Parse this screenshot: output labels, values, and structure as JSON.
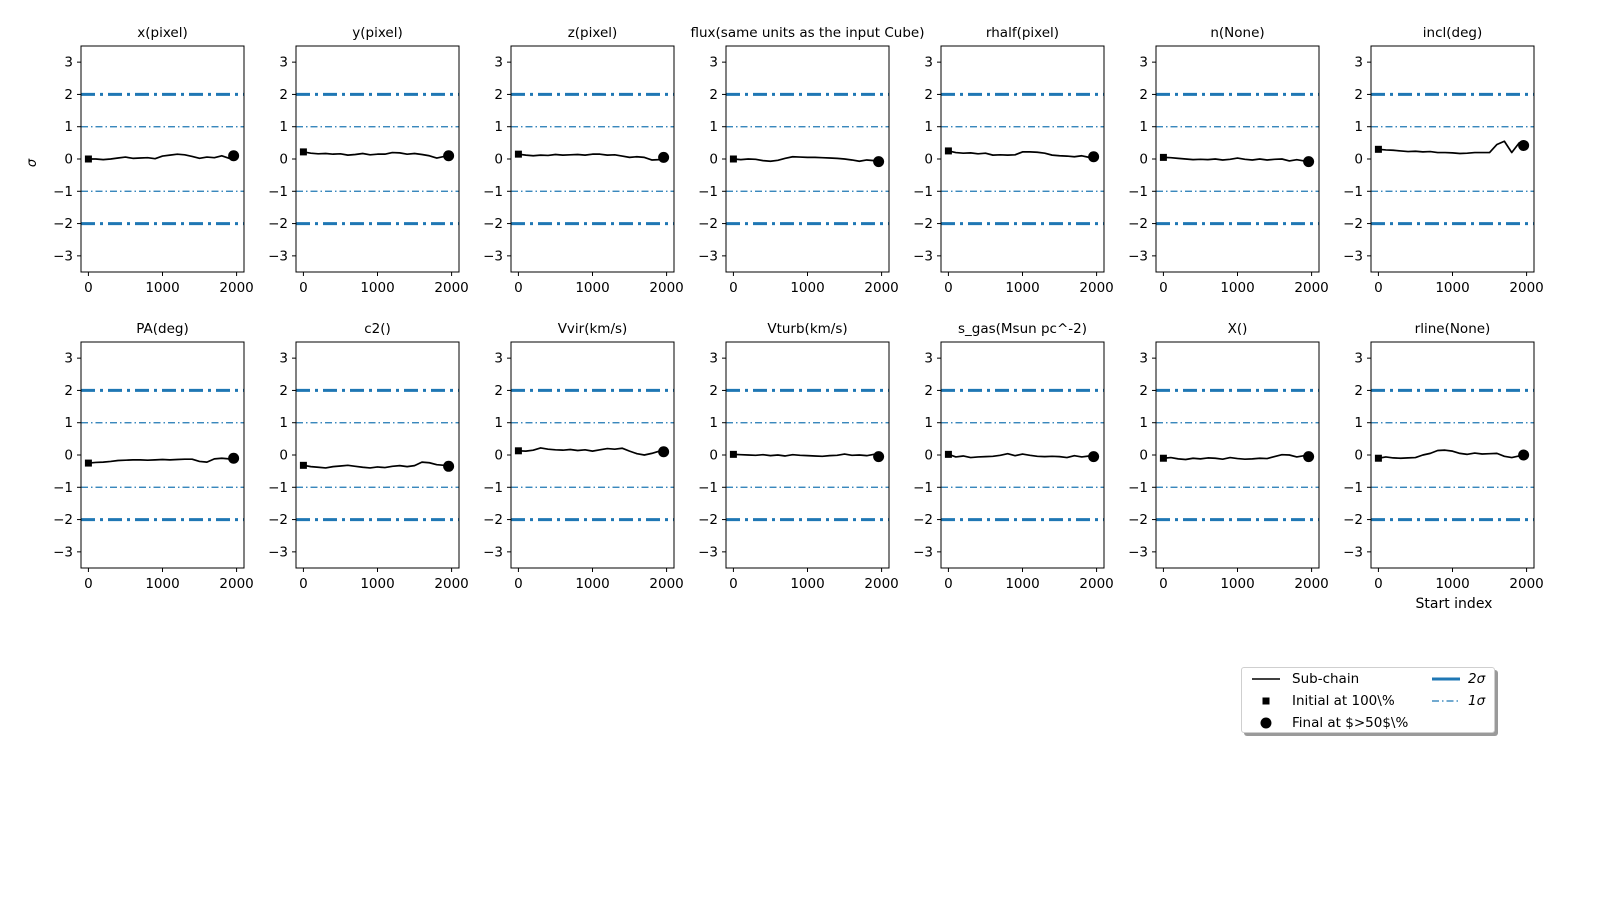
{
  "chart_data": {
    "type": "line",
    "shared_ylabel": "σ",
    "xlabel_last_panel": "Start index",
    "xlim": [
      -100,
      2100
    ],
    "ylim": [
      -3.5,
      3.5
    ],
    "xticks": [
      0,
      1000,
      2000
    ],
    "yticks": [
      -3,
      -2,
      -1,
      0,
      1,
      2,
      3
    ],
    "reference_lines": [
      {
        "name": "2σ",
        "values": [
          2,
          -2
        ],
        "style": "thick dash-dot",
        "color": "#1f77b4"
      },
      {
        "name": "1σ",
        "values": [
          1,
          -1
        ],
        "style": "thin dash-dot",
        "color": "#1f77b4"
      }
    ],
    "x": [
      0,
      100,
      200,
      300,
      400,
      500,
      600,
      700,
      800,
      900,
      1000,
      1100,
      1200,
      1300,
      1400,
      1500,
      1600,
      1700,
      1800,
      1900,
      1960
    ],
    "panels": [
      {
        "title": "x(pixel)",
        "initial": [
          0,
          0.0
        ],
        "final": [
          1960,
          0.1
        ],
        "values": [
          0.0,
          0.0,
          -0.02,
          0.0,
          0.03,
          0.06,
          0.02,
          0.03,
          0.04,
          0.01,
          0.09,
          0.12,
          0.15,
          0.13,
          0.08,
          0.02,
          0.06,
          0.04,
          0.1,
          0.02,
          0.1
        ]
      },
      {
        "title": "y(pixel)",
        "initial": [
          0,
          0.22
        ],
        "final": [
          1960,
          0.1
        ],
        "values": [
          0.22,
          0.18,
          0.16,
          0.17,
          0.15,
          0.16,
          0.12,
          0.14,
          0.17,
          0.13,
          0.15,
          0.15,
          0.2,
          0.19,
          0.15,
          0.17,
          0.14,
          0.1,
          0.03,
          0.08,
          0.1
        ]
      },
      {
        "title": "z(pixel)",
        "initial": [
          0,
          0.15
        ],
        "final": [
          1960,
          0.05
        ],
        "values": [
          0.15,
          0.12,
          0.1,
          0.12,
          0.11,
          0.14,
          0.12,
          0.13,
          0.14,
          0.12,
          0.15,
          0.15,
          0.12,
          0.13,
          0.09,
          0.05,
          0.07,
          0.05,
          -0.03,
          -0.02,
          0.05
        ]
      },
      {
        "title": "flux(same units as the input Cube)",
        "initial": [
          0,
          0.0
        ],
        "final": [
          1960,
          -0.08
        ],
        "values": [
          0.0,
          -0.02,
          0.0,
          -0.01,
          -0.05,
          -0.07,
          -0.04,
          0.02,
          0.07,
          0.06,
          0.05,
          0.05,
          0.04,
          0.03,
          0.02,
          0.0,
          -0.03,
          -0.07,
          -0.03,
          -0.05,
          -0.08
        ]
      },
      {
        "title": "rhalf(pixel)",
        "initial": [
          0,
          0.25
        ],
        "final": [
          1960,
          0.07
        ],
        "values": [
          0.25,
          0.2,
          0.18,
          0.19,
          0.16,
          0.18,
          0.12,
          0.13,
          0.12,
          0.13,
          0.22,
          0.22,
          0.21,
          0.18,
          0.12,
          0.1,
          0.09,
          0.07,
          0.1,
          0.05,
          0.07
        ]
      },
      {
        "title": "n(None)",
        "initial": [
          0,
          0.05
        ],
        "final": [
          1960,
          -0.08
        ],
        "values": [
          0.05,
          0.04,
          0.02,
          0.0,
          -0.02,
          -0.01,
          -0.02,
          0.0,
          -0.03,
          -0.01,
          0.03,
          -0.01,
          -0.03,
          0.0,
          -0.03,
          -0.01,
          0.0,
          -0.06,
          -0.02,
          -0.06,
          -0.08
        ]
      },
      {
        "title": "incl(deg)",
        "initial": [
          0,
          0.3
        ],
        "final": [
          1960,
          0.42
        ],
        "values": [
          0.3,
          0.28,
          0.27,
          0.25,
          0.23,
          0.24,
          0.22,
          0.23,
          0.2,
          0.2,
          0.19,
          0.17,
          0.18,
          0.2,
          0.2,
          0.2,
          0.45,
          0.55,
          0.2,
          0.5,
          0.42
        ]
      },
      {
        "title": "PA(deg)",
        "initial": [
          0,
          -0.25
        ],
        "final": [
          1960,
          -0.1
        ],
        "values": [
          -0.25,
          -0.23,
          -0.22,
          -0.2,
          -0.17,
          -0.16,
          -0.15,
          -0.15,
          -0.16,
          -0.15,
          -0.14,
          -0.15,
          -0.14,
          -0.13,
          -0.13,
          -0.2,
          -0.22,
          -0.12,
          -0.1,
          -0.12,
          -0.1
        ]
      },
      {
        "title": "c2()",
        "initial": [
          0,
          -0.32
        ],
        "final": [
          1960,
          -0.35
        ],
        "values": [
          -0.32,
          -0.36,
          -0.38,
          -0.4,
          -0.36,
          -0.34,
          -0.32,
          -0.35,
          -0.38,
          -0.4,
          -0.37,
          -0.39,
          -0.35,
          -0.33,
          -0.36,
          -0.33,
          -0.22,
          -0.24,
          -0.3,
          -0.32,
          -0.35
        ]
      },
      {
        "title": "Vvir(km/s)",
        "initial": [
          0,
          0.13
        ],
        "final": [
          1960,
          0.1
        ],
        "values": [
          0.13,
          0.12,
          0.15,
          0.22,
          0.18,
          0.16,
          0.15,
          0.17,
          0.14,
          0.16,
          0.12,
          0.16,
          0.2,
          0.18,
          0.21,
          0.12,
          0.04,
          0.0,
          0.05,
          0.12,
          0.1
        ]
      },
      {
        "title": "Vturb(km/s)",
        "initial": [
          0,
          0.02
        ],
        "final": [
          1960,
          -0.05
        ],
        "values": [
          0.02,
          0.01,
          0.0,
          -0.01,
          0.01,
          -0.02,
          0.0,
          -0.03,
          0.01,
          -0.01,
          -0.02,
          -0.03,
          -0.04,
          -0.02,
          -0.01,
          0.03,
          -0.01,
          0.0,
          -0.02,
          0.02,
          -0.05
        ]
      },
      {
        "title": "s_gas(Msun pc^-2)",
        "initial": [
          0,
          0.02
        ],
        "final": [
          1960,
          -0.05
        ],
        "values": [
          0.02,
          -0.06,
          -0.03,
          -0.08,
          -0.06,
          -0.05,
          -0.04,
          -0.01,
          0.04,
          -0.02,
          0.03,
          -0.01,
          -0.04,
          -0.05,
          -0.04,
          -0.05,
          -0.08,
          -0.02,
          -0.06,
          -0.03,
          -0.05
        ]
      },
      {
        "title": "X()",
        "initial": [
          0,
          -0.1
        ],
        "final": [
          1960,
          -0.05
        ],
        "values": [
          -0.1,
          -0.08,
          -0.12,
          -0.14,
          -0.1,
          -0.12,
          -0.09,
          -0.1,
          -0.13,
          -0.08,
          -0.11,
          -0.13,
          -0.12,
          -0.1,
          -0.11,
          -0.05,
          0.01,
          0.0,
          -0.06,
          -0.02,
          -0.05
        ]
      },
      {
        "title": "rline(None)",
        "initial": [
          0,
          -0.1
        ],
        "final": [
          1960,
          0.0
        ],
        "values": [
          -0.1,
          -0.06,
          -0.09,
          -0.1,
          -0.09,
          -0.08,
          0.0,
          0.05,
          0.14,
          0.15,
          0.12,
          0.05,
          0.02,
          0.06,
          0.03,
          0.04,
          0.05,
          -0.04,
          -0.08,
          -0.03,
          0.0
        ]
      }
    ]
  },
  "legend": {
    "subchain": "Sub-chain",
    "initial": "Initial at 100\\%",
    "final": "Final at $>50$\\%",
    "two_sigma": "2σ",
    "one_sigma": "1σ"
  }
}
